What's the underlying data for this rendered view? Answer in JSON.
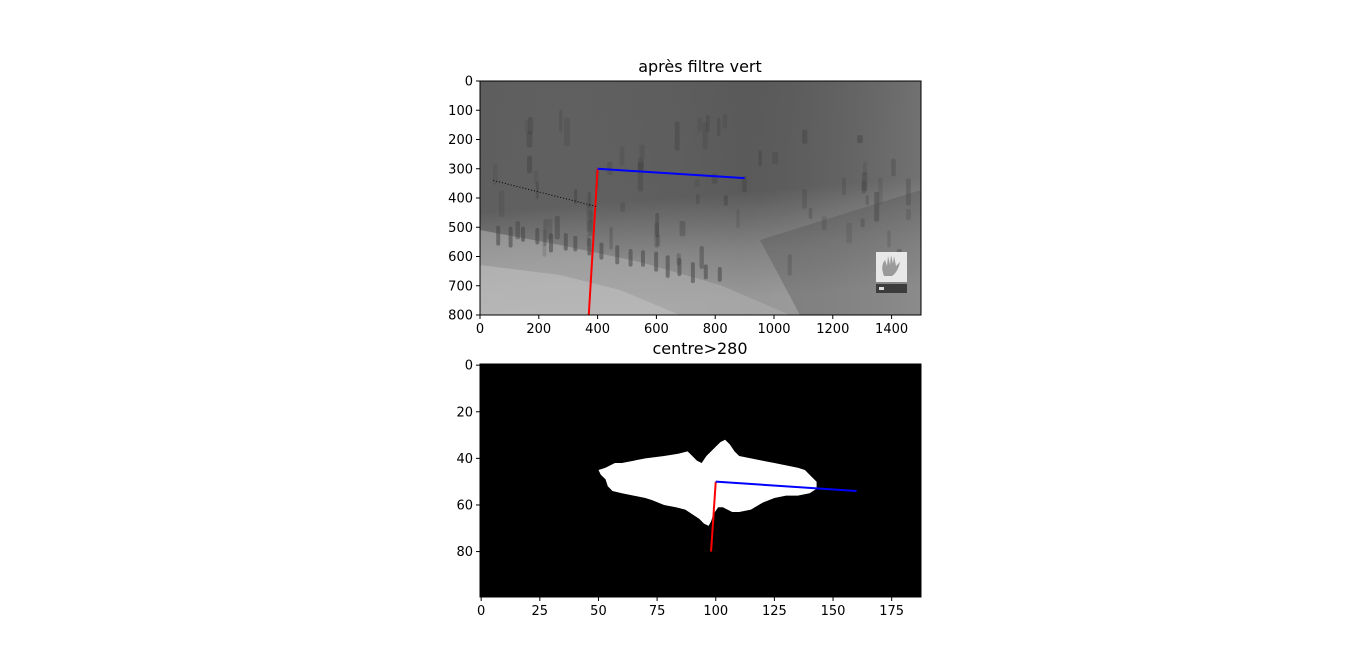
{
  "chart_data": [
    {
      "type": "image",
      "title": "après filtre vert",
      "xlim": [
        0,
        1500
      ],
      "ylim": [
        800,
        0
      ],
      "x_ticks": [
        0,
        200,
        400,
        600,
        800,
        1000,
        1200,
        1400
      ],
      "y_ticks": [
        0,
        100,
        200,
        300,
        400,
        500,
        600,
        700,
        800
      ],
      "image": "grayscale photo (green-channel filtered) with darker finger-like streaks and a small logo in the lower right",
      "lines": [
        {
          "color": "#ff0000",
          "points": [
            [
              400,
              300
            ],
            [
              370,
              800
            ]
          ]
        },
        {
          "color": "#0000ff",
          "points": [
            [
              400,
              300
            ],
            [
              900,
              332
            ]
          ]
        },
        {
          "color": "#000000",
          "style": "dotted",
          "points": [
            [
              45,
              340
            ],
            [
              400,
              430
            ]
          ]
        }
      ]
    },
    {
      "type": "image",
      "title": "centre>280",
      "xlim": [
        0,
        188
      ],
      "ylim": [
        100,
        0
      ],
      "x_ticks": [
        0,
        25,
        50,
        75,
        100,
        125,
        150,
        175
      ],
      "y_ticks": [
        0,
        20,
        40,
        60,
        80
      ],
      "image": "binary mask: white blob on black background",
      "mask_outline": [
        [
          50,
          45
        ],
        [
          53,
          44
        ],
        [
          57,
          42
        ],
        [
          60,
          42
        ],
        [
          65,
          41
        ],
        [
          70,
          40
        ],
        [
          78,
          39
        ],
        [
          84,
          38
        ],
        [
          88,
          37
        ],
        [
          90,
          39
        ],
        [
          92,
          41
        ],
        [
          94,
          42
        ],
        [
          96,
          39
        ],
        [
          98,
          37
        ],
        [
          100,
          35
        ],
        [
          102,
          33
        ],
        [
          104,
          32
        ],
        [
          106,
          34
        ],
        [
          108,
          37
        ],
        [
          110,
          39
        ],
        [
          115,
          40
        ],
        [
          120,
          41
        ],
        [
          125,
          42
        ],
        [
          130,
          43
        ],
        [
          135,
          44
        ],
        [
          138,
          45
        ],
        [
          140,
          47
        ],
        [
          143,
          50
        ],
        [
          143,
          53
        ],
        [
          140,
          55
        ],
        [
          135,
          56
        ],
        [
          130,
          56
        ],
        [
          125,
          57
        ],
        [
          120,
          59
        ],
        [
          115,
          62
        ],
        [
          110,
          63
        ],
        [
          107,
          63
        ],
        [
          105,
          62
        ],
        [
          103,
          61
        ],
        [
          101,
          61
        ],
        [
          99,
          64
        ],
        [
          98,
          67
        ],
        [
          97,
          69
        ],
        [
          95,
          68
        ],
        [
          93,
          66
        ],
        [
          90,
          64
        ],
        [
          87,
          62
        ],
        [
          83,
          61
        ],
        [
          78,
          60
        ],
        [
          73,
          58
        ],
        [
          70,
          57
        ],
        [
          65,
          56
        ],
        [
          60,
          55
        ],
        [
          56,
          54
        ],
        [
          54,
          52
        ],
        [
          53,
          49
        ],
        [
          51,
          47
        ]
      ],
      "lines": [
        {
          "color": "#ff0000",
          "points": [
            [
              100,
              50
            ],
            [
              98,
              80
            ]
          ]
        },
        {
          "color": "#0000ff",
          "points": [
            [
              100,
              50
            ],
            [
              160,
              54
            ]
          ]
        }
      ]
    }
  ]
}
